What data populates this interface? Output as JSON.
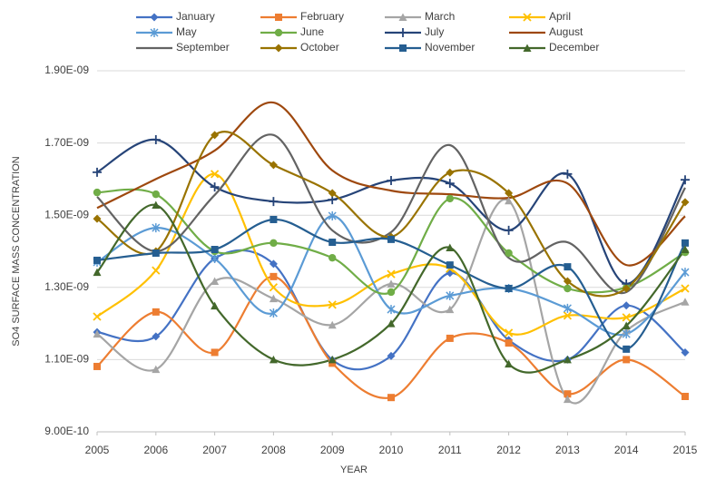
{
  "chart_data": {
    "type": "line",
    "smooth": true,
    "grid": true,
    "legend": "top",
    "xlabel": "YEAR",
    "ylabel": "SO4 SURFACE MASS CONCENTRATION",
    "x": [
      2005,
      2006,
      2007,
      2008,
      2009,
      2010,
      2011,
      2012,
      2013,
      2014,
      2015
    ],
    "xlim": [
      2005,
      2015
    ],
    "xticks": [
      2005,
      2006,
      2007,
      2008,
      2009,
      2010,
      2011,
      2012,
      2013,
      2014,
      2015
    ],
    "ylim": [
      9e-10,
      1.9e-09
    ],
    "yticks": [
      {
        "value": 9e-10,
        "label": "9.00E-10"
      },
      {
        "value": 1.1e-09,
        "label": "1.10E-09"
      },
      {
        "value": 1.3e-09,
        "label": "1.30E-09"
      },
      {
        "value": 1.5e-09,
        "label": "1.50E-09"
      },
      {
        "value": 1.7e-09,
        "label": "1.70E-09"
      },
      {
        "value": 1.9e-09,
        "label": "1.90E-09"
      }
    ],
    "series": [
      {
        "name": "January",
        "color": "#4472c4",
        "marker": "diamond",
        "values": [
          1.176e-09,
          1.164e-09,
          1.38e-09,
          1.365e-09,
          1.099e-09,
          1.11e-09,
          1.34e-09,
          1.154e-09,
          1.1e-09,
          1.25e-09,
          1.12e-09
        ]
      },
      {
        "name": "February",
        "color": "#ed7d31",
        "marker": "square",
        "values": [
          1.081e-09,
          1.232e-09,
          1.12e-09,
          1.33e-09,
          1.09e-09,
          9.95e-10,
          1.159e-09,
          1.146e-09,
          1.005e-09,
          1.1e-09,
          9.98e-10
        ]
      },
      {
        "name": "March",
        "color": "#a5a5a5",
        "marker": "triangle",
        "values": [
          1.171e-09,
          1.073e-09,
          1.317e-09,
          1.269e-09,
          1.196e-09,
          1.31e-09,
          1.239e-09,
          1.54e-09,
          9.9e-10,
          1.18e-09,
          1.26e-09
        ]
      },
      {
        "name": "April",
        "color": "#ffc000",
        "marker": "x",
        "values": [
          1.219e-09,
          1.347e-09,
          1.614e-09,
          1.3e-09,
          1.252e-09,
          1.337e-09,
          1.352e-09,
          1.174e-09,
          1.222e-09,
          1.217e-09,
          1.297e-09
        ]
      },
      {
        "name": "May",
        "color": "#5b9bd5",
        "marker": "asterisk",
        "values": [
          1.37e-09,
          1.465e-09,
          1.38e-09,
          1.229e-09,
          1.498e-09,
          1.239e-09,
          1.277e-09,
          1.297e-09,
          1.242e-09,
          1.171e-09,
          1.342e-09
        ]
      },
      {
        "name": "June",
        "color": "#70ad47",
        "marker": "circle",
        "values": [
          1.563e-09,
          1.558e-09,
          1.4e-09,
          1.423e-09,
          1.382e-09,
          1.287e-09,
          1.546e-09,
          1.395e-09,
          1.297e-09,
          1.3e-09,
          1.397e-09
        ]
      },
      {
        "name": "July",
        "color": "#264478",
        "marker": "plus",
        "values": [
          1.619e-09,
          1.709e-09,
          1.578e-09,
          1.538e-09,
          1.543e-09,
          1.596e-09,
          1.588e-09,
          1.458e-09,
          1.614e-09,
          1.31e-09,
          1.598e-09
        ]
      },
      {
        "name": "August",
        "color": "#9e480e",
        "marker": "none",
        "values": [
          1.52e-09,
          1.6e-09,
          1.679e-09,
          1.812e-09,
          1.624e-09,
          1.568e-09,
          1.558e-09,
          1.548e-09,
          1.588e-09,
          1.362e-09,
          1.497e-09
        ]
      },
      {
        "name": "September",
        "color": "#636363",
        "marker": "none",
        "values": [
          1.551e-09,
          1.4e-09,
          1.556e-09,
          1.722e-09,
          1.458e-09,
          1.453e-09,
          1.694e-09,
          1.382e-09,
          1.425e-09,
          1.287e-09,
          1.576e-09
        ]
      },
      {
        "name": "October",
        "color": "#997300",
        "marker": "diamond",
        "values": [
          1.49e-09,
          1.4e-09,
          1.722e-09,
          1.639e-09,
          1.561e-09,
          1.44e-09,
          1.618e-09,
          1.561e-09,
          1.317e-09,
          1.297e-09,
          1.536e-09
        ]
      },
      {
        "name": "November",
        "color": "#255e91",
        "marker": "square",
        "values": [
          1.375e-09,
          1.395e-09,
          1.405e-09,
          1.488e-09,
          1.425e-09,
          1.433e-09,
          1.362e-09,
          1.297e-09,
          1.357e-09,
          1.129e-09,
          1.423e-09
        ]
      },
      {
        "name": "December",
        "color": "#43682b",
        "marker": "triangle",
        "values": [
          1.342e-09,
          1.528e-09,
          1.249e-09,
          1.1e-09,
          1.1e-09,
          1.2e-09,
          1.41e-09,
          1.088e-09,
          1.1e-09,
          1.194e-09,
          1.405e-09
        ]
      }
    ]
  }
}
